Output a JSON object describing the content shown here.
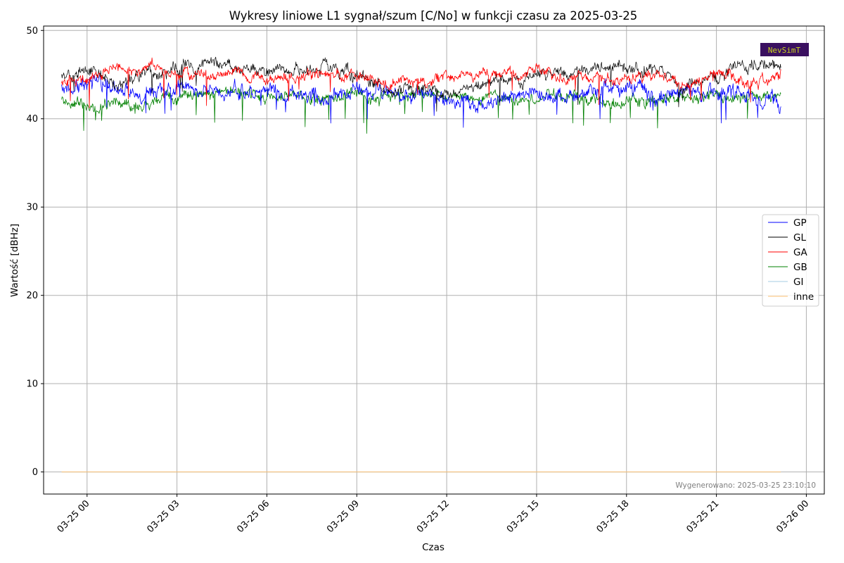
{
  "chart_data": {
    "type": "line",
    "title": "Wykresy liniowe L1 sygnał/szum [C/No] w funkcji czasu za 2025-03-25",
    "xlabel": "Czas",
    "ylabel": "Wartość [dBHz]",
    "ylim": [
      -2.5,
      50.5
    ],
    "yticks": [
      0,
      10,
      20,
      30,
      40,
      50
    ],
    "xlim_hours": [
      -1.45,
      24.6
    ],
    "xticks": [
      {
        "hour": 0,
        "label": "03-25 00"
      },
      {
        "hour": 3,
        "label": "03-25 03"
      },
      {
        "hour": 6,
        "label": "03-25 06"
      },
      {
        "hour": 9,
        "label": "03-25 09"
      },
      {
        "hour": 12,
        "label": "03-25 12"
      },
      {
        "hour": 15,
        "label": "03-25 15"
      },
      {
        "hour": 18,
        "label": "03-25 18"
      },
      {
        "hour": 21,
        "label": "03-25 21"
      },
      {
        "hour": 24,
        "label": "03-26 00"
      }
    ],
    "grid": true,
    "legend_position": "center-right",
    "x_hours": [
      -0.85,
      0,
      1,
      2,
      3,
      4,
      5,
      6,
      7,
      8,
      9,
      10,
      11,
      12,
      13,
      14,
      15,
      16,
      17,
      18,
      19,
      20,
      21,
      22,
      23,
      23.15
    ],
    "series": [
      {
        "name": "GP",
        "color": "#0000ff",
        "values": [
          43.5,
          44.0,
          43.8,
          42.5,
          43.5,
          43.2,
          43.0,
          43.5,
          42.8,
          42.5,
          43.2,
          42.8,
          42.7,
          42.5,
          41.8,
          42.5,
          43.0,
          42.2,
          43.0,
          43.5,
          42.5,
          42.8,
          43.0,
          42.5,
          42.5,
          42.0
        ]
      },
      {
        "name": "GL",
        "color": "#000000",
        "values": [
          44.5,
          45.5,
          44.0,
          45.0,
          45.5,
          46.5,
          46.0,
          45.5,
          45.8,
          46.0,
          44.5,
          43.5,
          43.5,
          43.0,
          44.0,
          44.5,
          45.0,
          45.2,
          45.5,
          46.0,
          45.5,
          44.0,
          44.5,
          46.0,
          46.0,
          45.5
        ]
      },
      {
        "name": "GA",
        "color": "#ff0000",
        "values": [
          44.0,
          44.5,
          45.5,
          45.8,
          45.5,
          45.0,
          45.5,
          44.5,
          44.8,
          45.2,
          45.0,
          44.0,
          44.2,
          44.5,
          45.2,
          45.0,
          45.8,
          44.5,
          44.5,
          44.8,
          45.0,
          43.5,
          45.0,
          44.0,
          44.5,
          45.0
        ]
      },
      {
        "name": "GB",
        "color": "#008000",
        "values": [
          42.0,
          41.8,
          41.5,
          41.5,
          42.5,
          43.2,
          43.0,
          42.5,
          42.5,
          42.5,
          42.8,
          42.0,
          42.8,
          42.2,
          42.0,
          41.8,
          42.5,
          42.8,
          41.8,
          42.0,
          42.0,
          42.5,
          42.5,
          42.5,
          42.5,
          42.8
        ]
      },
      {
        "name": "GI",
        "color": "#a6cee3",
        "values": [
          0,
          0,
          0,
          0,
          0,
          0,
          0,
          0,
          0,
          0,
          0,
          0,
          0,
          0,
          0,
          0,
          0,
          0,
          0,
          0,
          0,
          0,
          0,
          0,
          0,
          0
        ]
      },
      {
        "name": "inne",
        "color": "#fdbf6f",
        "values": [
          0,
          0,
          0,
          0,
          0,
          0,
          0,
          0,
          0,
          0,
          0,
          0,
          0,
          0,
          0,
          0,
          0,
          0,
          0,
          0,
          0,
          0,
          0,
          0,
          0,
          0
        ]
      }
    ],
    "annotations": {
      "generated": "Wygenerowano: 2025-03-25 23:10:10",
      "logo": "NevSimT"
    }
  },
  "colors": {
    "grid": "#b0b0b0",
    "logo_bg": "#3a1060",
    "logo_text": "#c8d020"
  }
}
